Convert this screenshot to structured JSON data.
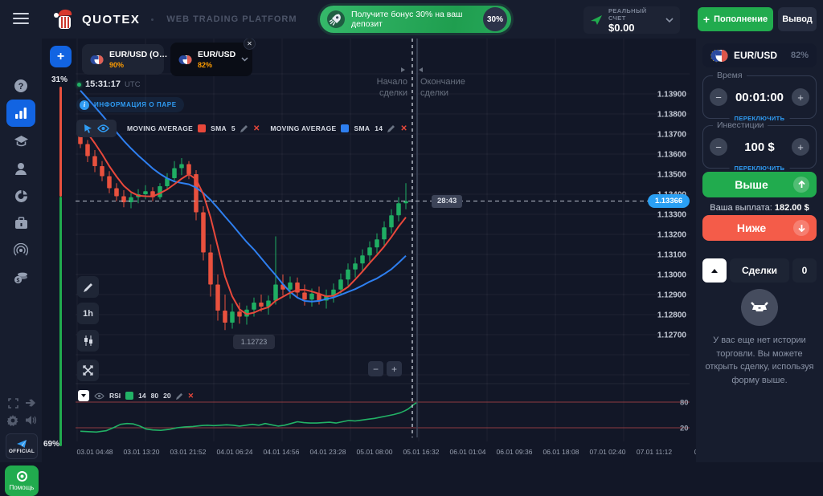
{
  "header": {
    "brand": "QUOTEX",
    "tagline": "WEB TRADING PLATFORM",
    "bonus": {
      "text": "Получите бонус 30% на ваш депозит",
      "badge": "30%"
    },
    "account": {
      "type_label": "РЕАЛЬНЫЙ СЧЕТ",
      "balance": "$0.00"
    },
    "deposit_label": "Пополнение",
    "withdraw_label": "Вывод"
  },
  "sidebar": {
    "help_label": "Помощь",
    "official_label": "OFFICIAL"
  },
  "sentiment": {
    "up_percent": "31%",
    "down_percent": "69%",
    "up_color": "#e9513e",
    "down_color": "#21ab4e"
  },
  "tabs": [
    {
      "symbol": "EUR/USD (O…",
      "payout": "90%"
    },
    {
      "symbol": "EUR/USD",
      "payout": "82%"
    }
  ],
  "clock": {
    "time": "15:31:17",
    "tz": "UTC"
  },
  "pair_info_label": "ИНФОРМАЦИЯ О ПАРЕ",
  "indicators": [
    {
      "name": "MOVING AVERAGE",
      "type": "SMA",
      "period": "5",
      "color": "#e8483b"
    },
    {
      "name": "MOVING AVERAGE",
      "type": "SMA",
      "period": "14",
      "color": "#2e7ff0"
    }
  ],
  "toolbar": {
    "timeframe": "1h",
    "zoom_out": "−",
    "zoom_in": "+"
  },
  "trade_markers": {
    "start": "Начало сделки",
    "end": "Окончание сделки",
    "countdown": "28:43",
    "current_price": "1.13366",
    "low_tooltip": "1.12723"
  },
  "rsi_legend": {
    "name": "RSI",
    "period": "14",
    "upper": "80",
    "lower": "20",
    "color": "#22b266"
  },
  "chart_data": {
    "type": "candlestick",
    "symbol": "EUR/USD",
    "timeframe": "1h",
    "legend": [
      "MOVING AVERAGE SMA 5",
      "MOVING AVERAGE SMA 14",
      "RSI 14 80 20"
    ],
    "y_axis": {
      "labels": [
        "1.13900",
        "1.13800",
        "1.13700",
        "1.13600",
        "1.13500",
        "1.13400",
        "1.13300",
        "1.13200",
        "1.13100",
        "1.13000",
        "1.12900",
        "1.12800",
        "1.12700"
      ],
      "top_value": 1.139,
      "step": 0.001
    },
    "x_axis": {
      "labels": [
        "03.01 04:48",
        "03.01 13:20",
        "03.01 21:52",
        "04.01 06:24",
        "04.01 14:56",
        "04.01 23:28",
        "05.01 08:00",
        "05.01 16:32",
        "06.01 01:04",
        "06.01 09:36",
        "06.01 18:08",
        "07.01 02:40",
        "07.01 11:12",
        "07.0"
      ]
    },
    "current_price": 1.13366,
    "candles": [
      [
        1.137,
        1.1372,
        1.1363,
        1.1365
      ],
      [
        1.1365,
        1.1367,
        1.1356,
        1.1359
      ],
      [
        1.1359,
        1.1362,
        1.1351,
        1.1354
      ],
      [
        1.1354,
        1.13565,
        1.13465,
        1.1349
      ],
      [
        1.1349,
        1.13515,
        1.13405,
        1.1343
      ],
      [
        1.1343,
        1.13455,
        1.13365,
        1.1339
      ],
      [
        1.1339,
        1.1342,
        1.13335,
        1.1336
      ],
      [
        1.1336,
        1.13405,
        1.1333,
        1.13385
      ],
      [
        1.13385,
        1.13425,
        1.13355,
        1.134
      ],
      [
        1.134,
        1.13445,
        1.13375,
        1.13415
      ],
      [
        1.13415,
        1.13435,
        1.13365,
        1.13385
      ],
      [
        1.13385,
        1.13455,
        1.13375,
        1.1344
      ],
      [
        1.1344,
        1.13505,
        1.1342,
        1.1348
      ],
      [
        1.1348,
        1.13565,
        1.1346,
        1.1353
      ],
      [
        1.1353,
        1.1358,
        1.13495,
        1.1355
      ],
      [
        1.1355,
        1.13565,
        1.13475,
        1.135
      ],
      [
        1.135,
        1.1352,
        1.1327,
        1.1331
      ],
      [
        1.1331,
        1.1334,
        1.1307,
        1.1311
      ],
      [
        1.1311,
        1.1315,
        1.1289,
        1.1295
      ],
      [
        1.1295,
        1.13,
        1.1277,
        1.1282
      ],
      [
        1.1282,
        1.129,
        1.12723,
        1.1276
      ],
      [
        1.1276,
        1.12855,
        1.1273,
        1.12815
      ],
      [
        1.12815,
        1.1286,
        1.12755,
        1.1279
      ],
      [
        1.1279,
        1.12845,
        1.1275,
        1.12825
      ],
      [
        1.12825,
        1.12885,
        1.1279,
        1.1286
      ],
      [
        1.1286,
        1.129,
        1.12815,
        1.1284
      ],
      [
        1.1284,
        1.12895,
        1.128,
        1.1287
      ],
      [
        1.1287,
        1.1319,
        1.1285,
        1.1295
      ],
      [
        1.1295,
        1.13,
        1.12895,
        1.12925
      ],
      [
        1.12925,
        1.1299,
        1.1288,
        1.1296
      ],
      [
        1.1296,
        1.12985,
        1.12885,
        1.1291
      ],
      [
        1.1291,
        1.1295,
        1.12845,
        1.12875
      ],
      [
        1.12875,
        1.1293,
        1.1284,
        1.12905
      ],
      [
        1.12905,
        1.1294,
        1.1285,
        1.1287
      ],
      [
        1.1287,
        1.12925,
        1.1283,
        1.12895
      ],
      [
        1.12895,
        1.12955,
        1.1286,
        1.12925
      ],
      [
        1.12925,
        1.13005,
        1.12895,
        1.12975
      ],
      [
        1.12975,
        1.13055,
        1.12945,
        1.13025
      ],
      [
        1.13025,
        1.13085,
        1.12985,
        1.13055
      ],
      [
        1.13055,
        1.13125,
        1.13015,
        1.13095
      ],
      [
        1.13095,
        1.13165,
        1.13065,
        1.13135
      ],
      [
        1.13135,
        1.13205,
        1.13105,
        1.13175
      ],
      [
        1.13175,
        1.13265,
        1.13145,
        1.13235
      ],
      [
        1.13235,
        1.13325,
        1.13205,
        1.13295
      ],
      [
        1.13295,
        1.13385,
        1.13265,
        1.13355
      ],
      [
        1.13355,
        1.13455,
        1.13325,
        1.13366
      ]
    ],
    "up_color": "#1fae63",
    "down_color": "#e9513e",
    "sma5_seed": [
      1.1382,
      1.1379,
      1.1376,
      1.1373
    ],
    "sma14_seed": [
      1.1415,
      1.1411,
      1.1407,
      1.1403,
      1.1399,
      1.13955,
      1.1392,
      1.1389,
      1.13865,
      1.1384,
      1.13815,
      1.1379,
      1.1376
    ],
    "rsi": {
      "levels": [
        80,
        20
      ],
      "points": [
        [
          100,
          12
        ],
        [
          110,
          11
        ],
        [
          120,
          10
        ],
        [
          132,
          13
        ],
        [
          142,
          21
        ],
        [
          150,
          28
        ],
        [
          158,
          30
        ],
        [
          166,
          29
        ],
        [
          174,
          24
        ],
        [
          182,
          17
        ],
        [
          190,
          15
        ],
        [
          200,
          14
        ],
        [
          210,
          16
        ],
        [
          220,
          20
        ],
        [
          230,
          22
        ],
        [
          240,
          23
        ],
        [
          250,
          25
        ],
        [
          258,
          26
        ],
        [
          266,
          25
        ],
        [
          274,
          26
        ],
        [
          282,
          27
        ],
        [
          290,
          26
        ],
        [
          298,
          24
        ],
        [
          306,
          26
        ],
        [
          314,
          28
        ],
        [
          322,
          26
        ],
        [
          330,
          30
        ],
        [
          338,
          27
        ],
        [
          346,
          24
        ],
        [
          354,
          26
        ],
        [
          362,
          30
        ],
        [
          370,
          34
        ],
        [
          378,
          32
        ],
        [
          386,
          31
        ],
        [
          394,
          31
        ],
        [
          402,
          32
        ],
        [
          410,
          33
        ],
        [
          418,
          31
        ],
        [
          426,
          34
        ],
        [
          434,
          37
        ],
        [
          442,
          36
        ],
        [
          450,
          38
        ],
        [
          458,
          40
        ],
        [
          466,
          42
        ],
        [
          474,
          45
        ],
        [
          482,
          48
        ],
        [
          490,
          51
        ],
        [
          498,
          55
        ],
        [
          504,
          60
        ],
        [
          508,
          64
        ],
        [
          512,
          70
        ],
        [
          516,
          76
        ],
        [
          519,
          79
        ]
      ]
    }
  },
  "panel": {
    "symbol": "EUR/USD",
    "payout": "82%",
    "time": {
      "label": "Время",
      "value": "00:01:00",
      "switch_label": "ПЕРЕКЛЮЧИТЬ"
    },
    "investment": {
      "label": "Инвестиции",
      "value": "100 $",
      "switch_label": "ПЕРЕКЛЮЧИТЬ"
    },
    "up_label": "Выше",
    "down_label": "Ниже",
    "payout_text": "Ваша выплата:",
    "payout_value": "182.00 $",
    "trades": {
      "title": "Сделки",
      "count": "0",
      "empty_text": "У вас еще нет истории торговли. Вы можете открыть сделку, используя форму выше."
    }
  }
}
